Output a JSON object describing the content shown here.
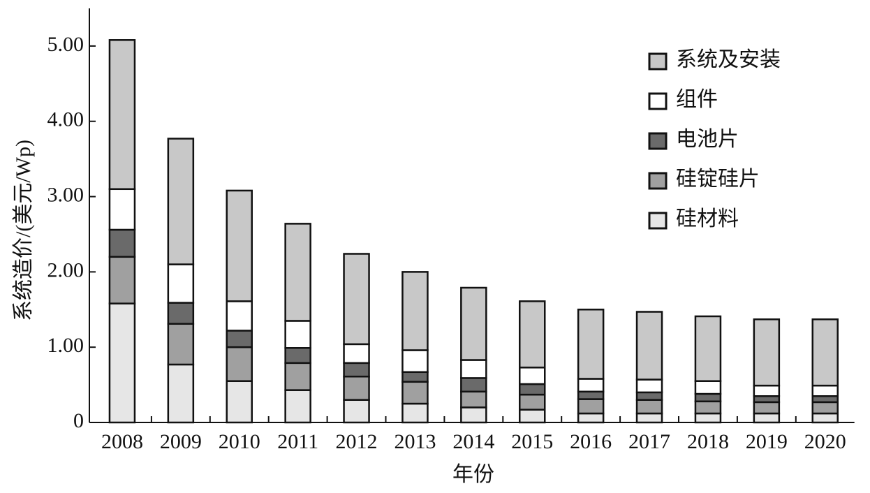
{
  "chart_data": {
    "type": "stacked_bar",
    "y_label": "系统造价/(美元/Wp)",
    "x_label": "年份",
    "categories": [
      "2008",
      "2009",
      "2010",
      "2011",
      "2012",
      "2013",
      "2014",
      "2015",
      "2016",
      "2017",
      "2018",
      "2019",
      "2020"
    ],
    "series": [
      {
        "name": "硅材料",
        "color": "#e6e6e6",
        "values": [
          1.58,
          0.77,
          0.55,
          0.43,
          0.3,
          0.25,
          0.2,
          0.17,
          0.12,
          0.12,
          0.12,
          0.12,
          0.12
        ]
      },
      {
        "name": "硅锭硅片",
        "color": "#a0a0a0",
        "values": [
          0.62,
          0.54,
          0.45,
          0.36,
          0.31,
          0.29,
          0.21,
          0.2,
          0.19,
          0.18,
          0.16,
          0.15,
          0.15
        ]
      },
      {
        "name": "电池片",
        "color": "#6a6a6a",
        "values": [
          0.36,
          0.28,
          0.22,
          0.2,
          0.18,
          0.13,
          0.18,
          0.14,
          0.1,
          0.1,
          0.1,
          0.08,
          0.08
        ]
      },
      {
        "name": "组件",
        "color": "#ffffff",
        "values": [
          0.54,
          0.51,
          0.39,
          0.36,
          0.25,
          0.29,
          0.24,
          0.22,
          0.17,
          0.17,
          0.17,
          0.14,
          0.14
        ]
      },
      {
        "name": "系统及安装",
        "color": "#c8c8c8",
        "values": [
          1.98,
          1.67,
          1.47,
          1.29,
          1.2,
          1.04,
          0.96,
          0.88,
          0.92,
          0.9,
          0.86,
          0.88,
          0.88
        ]
      }
    ],
    "ylim": [
      0,
      5.5
    ],
    "yticks": [
      0,
      {
        "value": 1,
        "label": "1.00"
      },
      {
        "value": 2,
        "label": "2.00"
      },
      {
        "value": 3,
        "label": "3.00"
      },
      {
        "value": 4,
        "label": "4.00"
      },
      {
        "value": 5,
        "label": "5.00"
      }
    ],
    "legend": "top-right"
  }
}
